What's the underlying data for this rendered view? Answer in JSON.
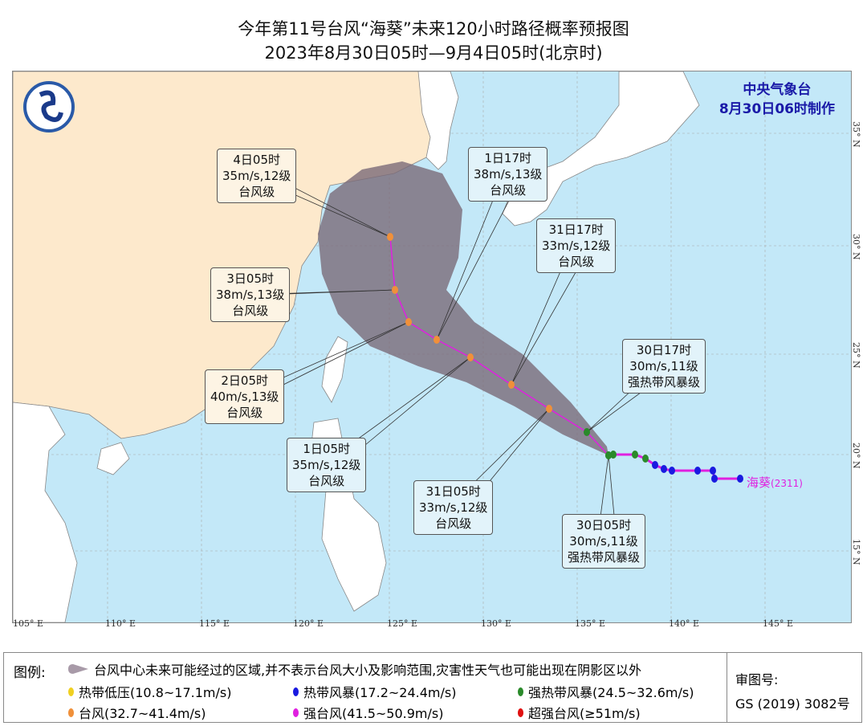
{
  "title": "今年第11号台风“海葵”未来120小时路径概率预报图",
  "subtitle": "2023年8月30日05时—9月4日05时(北京时)",
  "agency": {
    "name": "中央气象台",
    "made": "8月30日06时制作"
  },
  "typhoon": {
    "name": "海葵",
    "code": "(2311)"
  },
  "lon_ticks": [
    "105° E",
    "110° E",
    "115° E",
    "120° E",
    "125° E",
    "130° E",
    "135° E",
    "140° E",
    "145° E"
  ],
  "lat_ticks": [
    "35° N",
    "30° N",
    "25° N",
    "20° N",
    "15° N"
  ],
  "forecast_points": [
    {
      "time": "30日05时",
      "wind": "30m/s,11级",
      "level": "强热带风暴级",
      "color": "#2a8a2a"
    },
    {
      "time": "30日17时",
      "wind": "30m/s,11级",
      "level": "强热带风暴级",
      "color": "#2a8a2a"
    },
    {
      "time": "31日05时",
      "wind": "33m/s,12级",
      "level": "台风级",
      "color": "#f0903a"
    },
    {
      "time": "31日17时",
      "wind": "33m/s,12级",
      "level": "台风级",
      "color": "#f0903a"
    },
    {
      "time": "1日05时",
      "wind": "35m/s,12级",
      "level": "台风级",
      "color": "#f0903a"
    },
    {
      "time": "1日17时",
      "wind": "38m/s,13级",
      "level": "台风级",
      "color": "#f0903a"
    },
    {
      "time": "2日05时",
      "wind": "40m/s,13级",
      "level": "台风级",
      "color": "#f0903a"
    },
    {
      "time": "3日05时",
      "wind": "38m/s,13级",
      "level": "台风级",
      "color": "#f0903a"
    },
    {
      "time": "4日05时",
      "wind": "35m/s,12级",
      "level": "台风级",
      "color": "#f0903a"
    }
  ],
  "colors": {
    "sea": "#c3e8f8",
    "land_china": "#fde9cc",
    "land_other": "#ffffff",
    "cone": "#7a6a78",
    "track": "#e020e0"
  },
  "legend": {
    "title": "图例:",
    "cone_text": "台风中心未来可能经过的区域,并不表示台风大小及影响范围,灾害性天气也可能出现在阴影区以外",
    "items": [
      {
        "label": "热带低压(10.8~17.1m/s)",
        "color": "#f0d020"
      },
      {
        "label": "热带风暴(17.2~24.4m/s)",
        "color": "#1a1ae0"
      },
      {
        "label": "强热带风暴(24.5~32.6m/s)",
        "color": "#2a8a2a"
      },
      {
        "label": "台风(32.7~41.4m/s)",
        "color": "#f0903a"
      },
      {
        "label": "强台风(41.5~50.9m/s)",
        "color": "#e020e0"
      },
      {
        "label": "超强台风(≥51m/s)",
        "color": "#e01010"
      }
    ],
    "review_label": "审图号:",
    "review_no": "GS (2019) 3082号"
  }
}
